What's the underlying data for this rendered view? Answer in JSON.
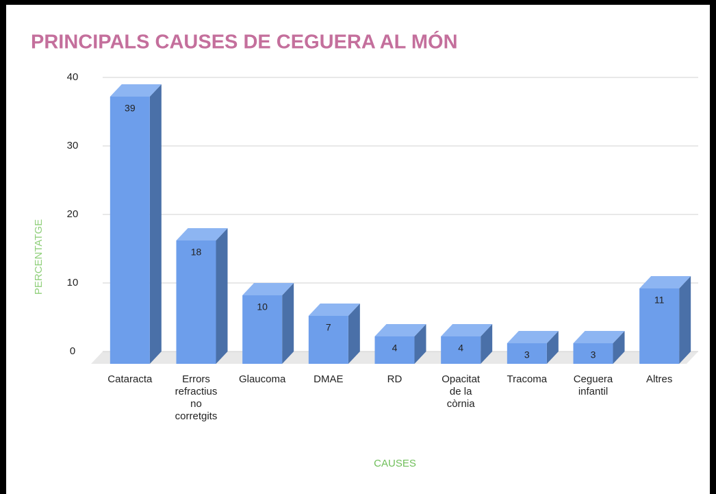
{
  "chart_data": {
    "type": "bar3d",
    "title": "PRINCIPALS CAUSES DE CEGUERA AL MÓN",
    "xlabel": "CAUSES",
    "ylabel": "PERCENTATGE",
    "categories": [
      "Cataracta",
      "Errors refractius no corretgits",
      "Glaucoma",
      "DMAE",
      "RD",
      "Opacitat de la còrnia",
      "Tracoma",
      "Ceguera infantil",
      "Altres"
    ],
    "values": [
      39,
      18,
      10,
      7,
      4,
      4,
      3,
      3,
      11
    ],
    "color": "#6d9eeb",
    "ylim": [
      0,
      40
    ],
    "yticks": [
      0,
      10,
      20,
      30,
      40
    ],
    "grid": true
  }
}
